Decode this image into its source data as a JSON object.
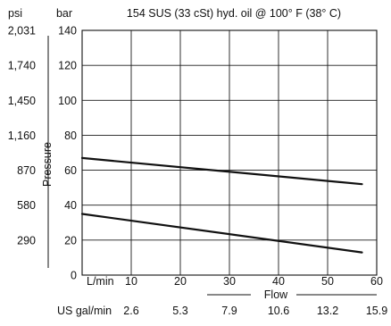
{
  "chart_data": {
    "type": "line",
    "title": "154 SUS (33 cSt) hyd. oil @ 100° F (38° C)",
    "units": {
      "psi": "psi",
      "bar": "bar"
    },
    "ylabel": "Pressure",
    "xlabel": "Flow",
    "x_unit_primary": "L/min",
    "x_unit_secondary": "US gal/min",
    "xlim": [
      0,
      60
    ],
    "ylim": [
      0,
      140
    ],
    "x_ticks": [
      "10",
      "20",
      "30",
      "40",
      "50",
      "60"
    ],
    "x_ticks_secondary": [
      "2.6",
      "5.3",
      "7.9",
      "10.6",
      "13.2",
      "15.9"
    ],
    "y_ticks_bar": [
      "0",
      "20",
      "40",
      "60",
      "80",
      "100",
      "120",
      "140"
    ],
    "y_ticks_psi": [
      "290",
      "580",
      "870",
      "1,160",
      "1,450",
      "1,740",
      "2,031"
    ],
    "grid": true,
    "series": [
      {
        "points": [
          [
            0,
            67
          ],
          [
            57,
            52
          ]
        ]
      },
      {
        "points": [
          [
            0,
            35
          ],
          [
            57,
            13
          ]
        ]
      }
    ]
  }
}
